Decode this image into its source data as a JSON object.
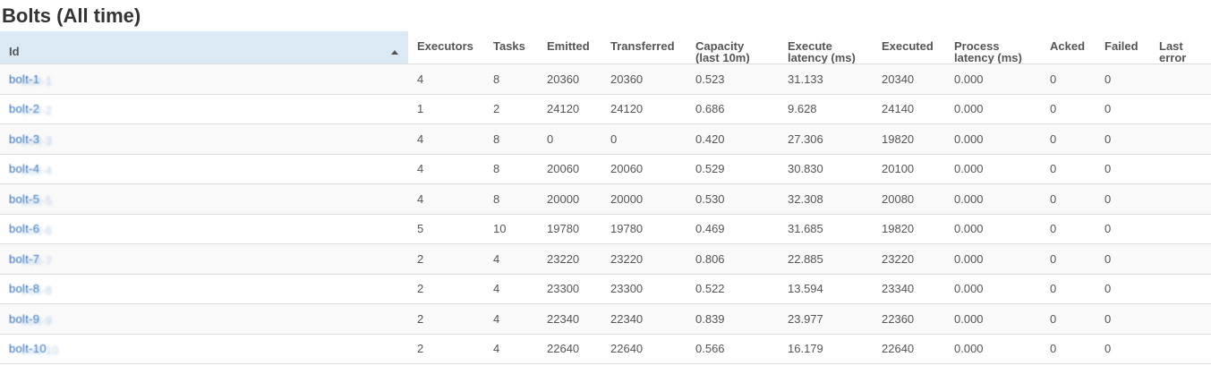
{
  "section": {
    "title": "Bolts (All time)"
  },
  "table": {
    "headers": {
      "id": "Id",
      "executors": "Executors",
      "tasks": "Tasks",
      "emitted": "Emitted",
      "transferred": "Transferred",
      "capacity": "Capacity (last 10m)",
      "execute_latency": "Execute latency (ms)",
      "executed": "Executed",
      "process_latency": "Process latency (ms)",
      "acked": "Acked",
      "failed": "Failed",
      "last_error": "Last error"
    },
    "sort": {
      "column": "id",
      "direction": "ascending",
      "icon": "sort-ascending-icon"
    },
    "link_color": "#2a6fbd",
    "sorted_header_bg": "#dbe9f4",
    "rows": [
      {
        "id": "bolt-1",
        "executors": "4",
        "tasks": "8",
        "emitted": "20360",
        "transferred": "20360",
        "capacity": "0.523",
        "execute_latency": "31.133",
        "executed": "20340",
        "process_latency": "0.000",
        "acked": "0",
        "failed": "0",
        "last_error": ""
      },
      {
        "id": "bolt-2",
        "executors": "1",
        "tasks": "2",
        "emitted": "24120",
        "transferred": "24120",
        "capacity": "0.686",
        "execute_latency": "9.628",
        "executed": "24140",
        "process_latency": "0.000",
        "acked": "0",
        "failed": "0",
        "last_error": ""
      },
      {
        "id": "bolt-3",
        "executors": "4",
        "tasks": "8",
        "emitted": "0",
        "transferred": "0",
        "capacity": "0.420",
        "execute_latency": "27.306",
        "executed": "19820",
        "process_latency": "0.000",
        "acked": "0",
        "failed": "0",
        "last_error": ""
      },
      {
        "id": "bolt-4",
        "executors": "4",
        "tasks": "8",
        "emitted": "20060",
        "transferred": "20060",
        "capacity": "0.529",
        "execute_latency": "30.830",
        "executed": "20100",
        "process_latency": "0.000",
        "acked": "0",
        "failed": "0",
        "last_error": ""
      },
      {
        "id": "bolt-5",
        "executors": "4",
        "tasks": "8",
        "emitted": "20000",
        "transferred": "20000",
        "capacity": "0.530",
        "execute_latency": "32.308",
        "executed": "20080",
        "process_latency": "0.000",
        "acked": "0",
        "failed": "0",
        "last_error": ""
      },
      {
        "id": "bolt-6",
        "executors": "5",
        "tasks": "10",
        "emitted": "19780",
        "transferred": "19780",
        "capacity": "0.469",
        "execute_latency": "31.685",
        "executed": "19820",
        "process_latency": "0.000",
        "acked": "0",
        "failed": "0",
        "last_error": ""
      },
      {
        "id": "bolt-7",
        "executors": "2",
        "tasks": "4",
        "emitted": "23220",
        "transferred": "23220",
        "capacity": "0.806",
        "execute_latency": "22.885",
        "executed": "23220",
        "process_latency": "0.000",
        "acked": "0",
        "failed": "0",
        "last_error": ""
      },
      {
        "id": "bolt-8",
        "executors": "2",
        "tasks": "4",
        "emitted": "23300",
        "transferred": "23300",
        "capacity": "0.522",
        "execute_latency": "13.594",
        "executed": "23340",
        "process_latency": "0.000",
        "acked": "0",
        "failed": "0",
        "last_error": ""
      },
      {
        "id": "bolt-9",
        "executors": "2",
        "tasks": "4",
        "emitted": "22340",
        "transferred": "22340",
        "capacity": "0.839",
        "execute_latency": "23.977",
        "executed": "22360",
        "process_latency": "0.000",
        "acked": "0",
        "failed": "0",
        "last_error": ""
      },
      {
        "id": "bolt-10",
        "executors": "2",
        "tasks": "4",
        "emitted": "22640",
        "transferred": "22640",
        "capacity": "0.566",
        "execute_latency": "16.179",
        "executed": "22640",
        "process_latency": "0.000",
        "acked": "0",
        "failed": "0",
        "last_error": ""
      }
    ]
  }
}
